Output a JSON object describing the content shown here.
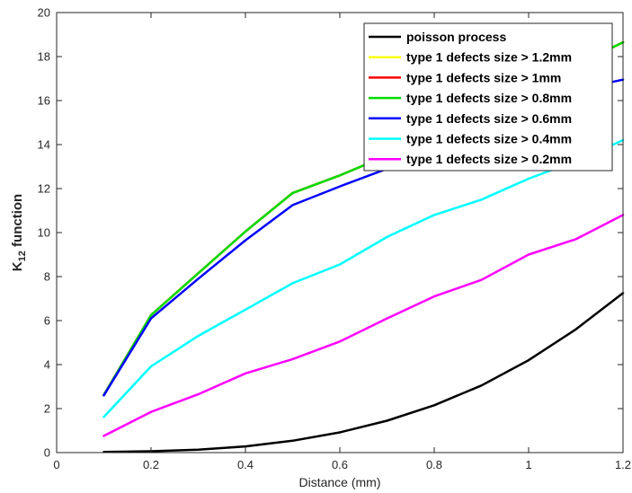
{
  "chart_data": {
    "type": "line",
    "title": "",
    "xlabel": "Distance (mm)",
    "ylabel": {
      "main": "K",
      "sub": "12",
      "suffix": " function"
    },
    "xlim": [
      0,
      1.2
    ],
    "ylim": [
      0,
      20
    ],
    "xticks": [
      "0",
      "0.2",
      "0.4",
      "0.6",
      "0.8",
      "1",
      "1.2"
    ],
    "yticks": [
      "0",
      "2",
      "4",
      "6",
      "8",
      "10",
      "12",
      "14",
      "16",
      "18",
      "20"
    ],
    "grid": false,
    "legend_position": "top-right",
    "x": [
      0.1,
      0.2,
      0.3,
      0.4,
      0.5,
      0.6,
      0.7,
      0.8,
      0.9,
      1.0,
      1.1,
      1.2
    ],
    "series": [
      {
        "name": "poisson process",
        "color": "#000000",
        "values": [
          0.03,
          0.06,
          0.13,
          0.28,
          0.54,
          0.92,
          1.45,
          2.15,
          3.05,
          4.2,
          5.6,
          7.25
        ]
      },
      {
        "name": "type 1 defects size > 1.2mm",
        "color": "#ffff00",
        "values": [
          2.62,
          6.25,
          8.15,
          10.05,
          11.8,
          12.6,
          13.5,
          14.5,
          15.5,
          16.6,
          17.6,
          18.65
        ]
      },
      {
        "name": "type 1 defects size > 1mm",
        "color": "#ff0000",
        "values": [
          2.62,
          6.25,
          8.15,
          10.05,
          11.8,
          12.6,
          13.5,
          14.5,
          15.5,
          16.6,
          17.6,
          18.65
        ]
      },
      {
        "name": "type 1 defects size > 0.8mm",
        "color": "#00dd00",
        "values": [
          2.62,
          6.25,
          8.15,
          10.05,
          11.8,
          12.6,
          13.5,
          14.5,
          15.5,
          16.6,
          17.6,
          18.65
        ]
      },
      {
        "name": "type 1 defects size > 0.6mm",
        "color": "#0000ff",
        "values": [
          2.6,
          6.1,
          7.9,
          9.65,
          11.25,
          12.1,
          12.9,
          13.8,
          14.75,
          15.75,
          16.5,
          16.95
        ]
      },
      {
        "name": "type 1 defects size > 0.4mm",
        "color": "#00ffff",
        "values": [
          1.62,
          3.92,
          5.3,
          6.5,
          7.7,
          8.55,
          9.8,
          10.8,
          11.5,
          12.45,
          13.25,
          14.2
        ]
      },
      {
        "name": "type 1 defects size > 0.2mm",
        "color": "#ff00ff",
        "values": [
          0.76,
          1.85,
          2.65,
          3.6,
          4.25,
          5.05,
          6.1,
          7.1,
          7.85,
          9.0,
          9.7,
          10.8
        ]
      }
    ]
  }
}
